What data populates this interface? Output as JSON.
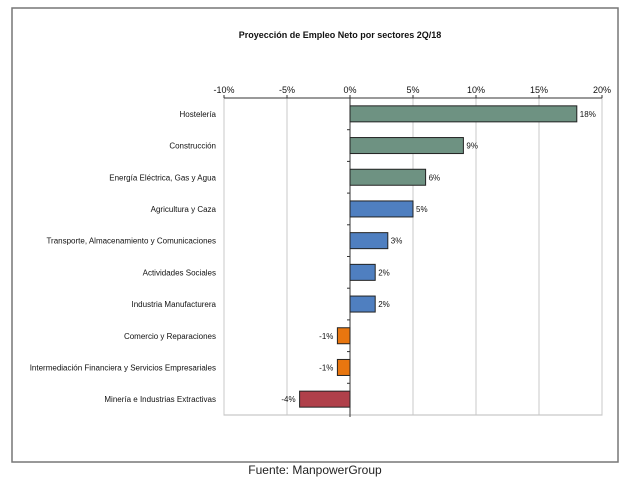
{
  "chart_data": {
    "type": "bar",
    "orientation": "horizontal",
    "title": "Proyección de Empleo Neto por sectores  2Q/18",
    "source": "Fuente: ManpowerGroup",
    "xlim": [
      -10,
      20
    ],
    "xticks": [
      -10,
      -5,
      0,
      5,
      10,
      15,
      20
    ],
    "tick_labels": [
      "-10%",
      "-5%",
      "0%",
      "5%",
      "10%",
      "15%",
      "20%"
    ],
    "axis_position": "top",
    "grid": true,
    "categories": [
      "Hostelería",
      "Construcción",
      "Energía Eléctrica, Gas y Agua",
      "Agricultura y Caza",
      "Transporte, Almacenamiento y Comunicaciones",
      "Actividades Sociales",
      "Industria Manufacturera",
      "Comercio y Reparaciones",
      "Intermediación Financiera y Servicios Empresariales",
      "Minería e Industrias Extractivas"
    ],
    "values": [
      18,
      9,
      6,
      5,
      3,
      2,
      2,
      -1,
      -1,
      -4
    ],
    "data_labels": [
      "18%",
      "9%",
      "6%",
      "5%",
      "3%",
      "2%",
      "2%",
      "-1%",
      "-1%",
      "-4%"
    ],
    "bar_colors": [
      "#6e9282",
      "#6e9282",
      "#6e9282",
      "#4f7fc0",
      "#4f7fc0",
      "#4f7fc0",
      "#4f7fc0",
      "#e8760f",
      "#e8760f",
      "#b0404a"
    ]
  }
}
